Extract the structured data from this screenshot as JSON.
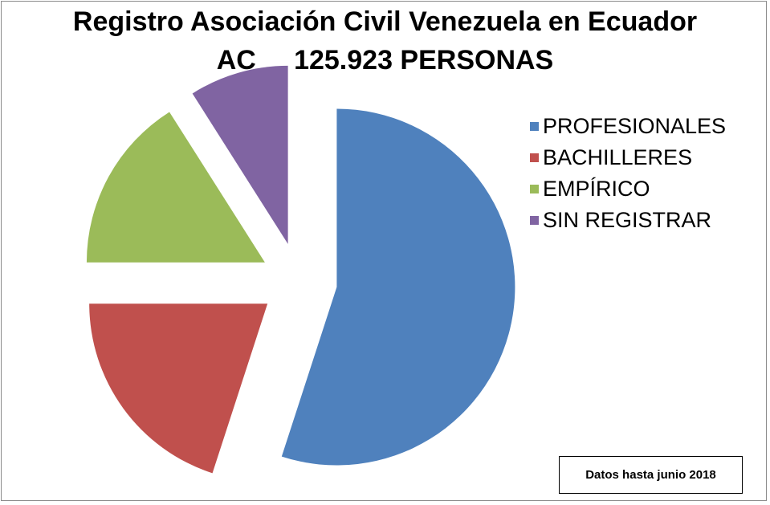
{
  "chart_data": {
    "type": "pie",
    "title_line1": "Registro Asociación Civil Venezuela en Ecuador",
    "title_line2": "AC     125.923 PERSONAS",
    "labels": [
      "PROFESIONALES",
      "BACHILLERES",
      "EMPÍRICO",
      "SIN REGISTRAR"
    ],
    "values": [
      55,
      20,
      16,
      9
    ],
    "colors": [
      "#4f81bd",
      "#c0504d",
      "#9bbb59",
      "#8064a2"
    ],
    "exploded": true,
    "legend_position": "right",
    "note": "Datos hasta junio 2018"
  }
}
